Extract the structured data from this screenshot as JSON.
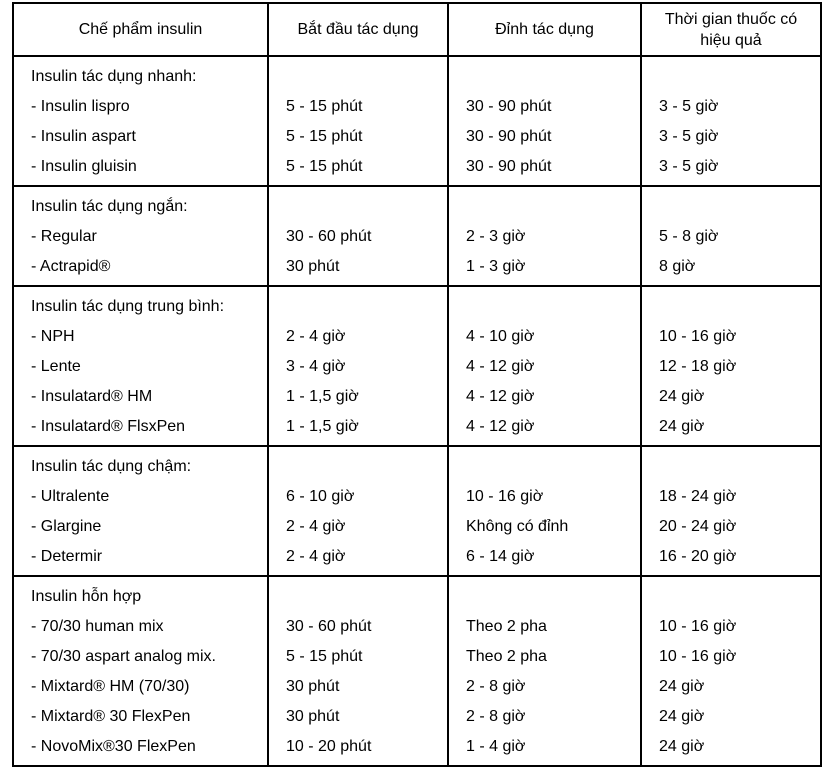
{
  "page": {
    "background_color": "#ffffff",
    "border_color": "#000000",
    "text_color": "#000000"
  },
  "table": {
    "headers": [
      {
        "label": "Chế phẩm insulin"
      },
      {
        "label": "Bắt đầu tác dụng"
      },
      {
        "label": "Đỉnh tác dụng"
      },
      {
        "label": "Thời gian thuốc có hiệu quả"
      }
    ],
    "sections": [
      {
        "title": "Insulin tác dụng nhanh:",
        "rows": [
          {
            "name": "- Insulin lispro",
            "onset": "5 - 15 phút",
            "peak": "30 - 90 phút",
            "duration": "3 - 5 giờ"
          },
          {
            "name": "- Insulin aspart",
            "onset": "5 - 15 phút",
            "peak": "30 - 90 phút",
            "duration": "3 - 5 giờ"
          },
          {
            "name": "- Insulin gluisin",
            "onset": "5 - 15 phút",
            "peak": "30 - 90 phút",
            "duration": "3 - 5 giờ"
          }
        ]
      },
      {
        "title": "Insulin tác dụng ngắn:",
        "rows": [
          {
            "name": "- Regular",
            "onset": "30 - 60 phút",
            "peak": "2 - 3 giờ",
            "duration": "5 - 8 giờ"
          },
          {
            "name": "- Actrapid®",
            "onset": "30 phút",
            "peak": "1 - 3 giờ",
            "duration": "8 giờ"
          }
        ]
      },
      {
        "title": "Insulin tác dụng trung bình:",
        "rows": [
          {
            "name": "- NPH",
            "onset": "2 - 4 giờ",
            "peak": "4 - 10 giờ",
            "duration": "10 - 16 giờ"
          },
          {
            "name": "- Lente",
            "onset": "3 - 4 giờ",
            "peak": "4 - 12 giờ",
            "duration": "12 - 18 giờ"
          },
          {
            "name": "- Insulatard® HM",
            "onset": "1 - 1,5 giờ",
            "peak": "4 - 12 giờ",
            "duration": "24 giờ"
          },
          {
            "name": "- Insulatard® FlsxPen",
            "onset": "1 - 1,5 giờ",
            "peak": "4 - 12 giờ",
            "duration": "24 giờ"
          }
        ]
      },
      {
        "title": "Insulin tác dụng chậm:",
        "rows": [
          {
            "name": "- Ultralente",
            "onset": "6 - 10 giờ",
            "peak": "10 - 16 giờ",
            "duration": "18 - 24 giờ"
          },
          {
            "name": "- Glargine",
            "onset": "2 - 4 giờ",
            "peak": "Không có đỉnh",
            "duration": "20 - 24 giờ"
          },
          {
            "name": "- Determir",
            "onset": "2 - 4 giờ",
            "peak": "6 - 14 giờ",
            "duration": "16 - 20 giờ"
          }
        ]
      },
      {
        "title": "Insulin hỗn hợp",
        "rows": [
          {
            "name": "- 70/30 human mix",
            "onset": "30 - 60 phút",
            "peak": "Theo 2 pha",
            "duration": "10 - 16 giờ"
          },
          {
            "name": "- 70/30 aspart analog mix.",
            "onset": "5 - 15 phút",
            "peak": "Theo 2 pha",
            "duration": "10 - 16 giờ"
          },
          {
            "name": "- Mixtard® HM (70/30)",
            "onset": "30 phút",
            "peak": "2 - 8 giờ",
            "duration": "24 giờ"
          },
          {
            "name": "- Mixtard® 30 FlexPen",
            "onset": "30 phút",
            "peak": "2 - 8 giờ",
            "duration": "24 giờ"
          },
          {
            "name": "- NovoMix®30 FlexPen",
            "onset": "10 - 20 phút",
            "peak": "1 - 4 giờ",
            "duration": "24 giờ"
          }
        ]
      }
    ]
  }
}
